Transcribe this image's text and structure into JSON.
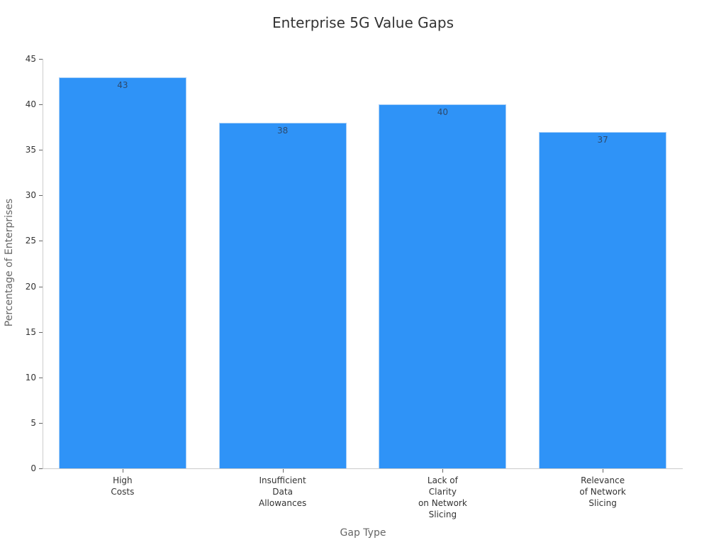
{
  "chart_data": {
    "type": "bar",
    "title": "Enterprise 5G Value Gaps",
    "xlabel": "Gap Type",
    "ylabel": "Percentage of Enterprises",
    "categories": [
      "High Costs",
      "Insufficient Data Allowances",
      "Lack of Clarity on Network Slicing",
      "Relevance of Network Slicing"
    ],
    "category_label_lines": [
      [
        "High",
        "Costs"
      ],
      [
        "Insufficient",
        "Data",
        "Allowances"
      ],
      [
        "Lack of",
        "Clarity",
        "on Network",
        "Slicing"
      ],
      [
        "Relevance",
        "of Network",
        "Slicing"
      ]
    ],
    "values": [
      43,
      38,
      40,
      37
    ],
    "data_labels": [
      "43",
      "38",
      "40",
      "37"
    ],
    "ylim": [
      0,
      45
    ],
    "yticks": [
      0,
      5,
      10,
      15,
      20,
      25,
      30,
      35,
      40,
      45
    ],
    "grid": false,
    "legend": "none",
    "bar_color": "#2f93f7"
  }
}
